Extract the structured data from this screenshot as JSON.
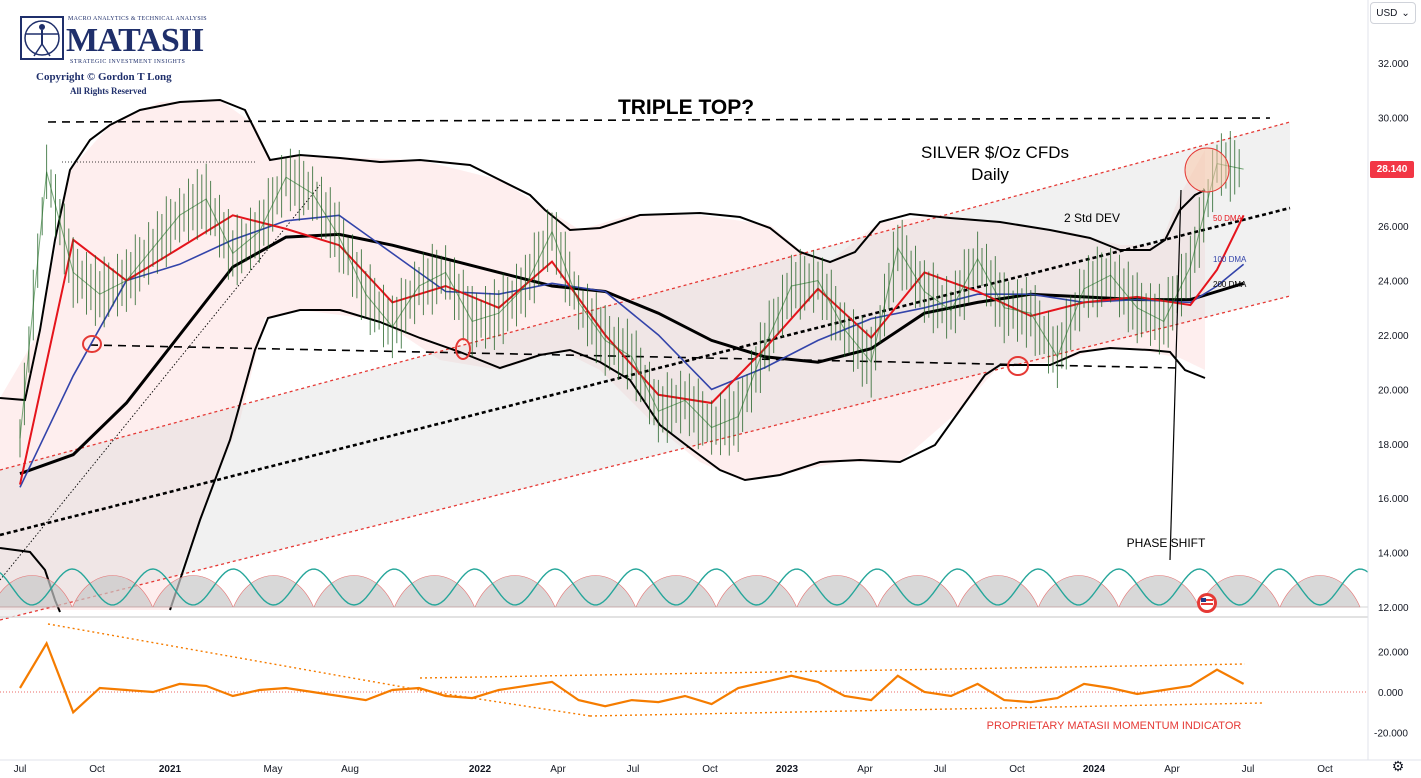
{
  "logo": {
    "small_line": "MACRO ANALYTICS & TECHNICAL ANALYSIS",
    "brand": "MATASII",
    "tagline": "STRATEGIC INVESTMENT INSIGHTS",
    "copyright": "Copyright © Gordon T Long",
    "rights": "All Rights Reserved"
  },
  "toolbar": {
    "currency": "USD",
    "settings_icon": "gear-icon"
  },
  "colors": {
    "price": "#2e7d32",
    "ma50": "#e5141c",
    "ma100": "#3344aa",
    "ma200": "#000000",
    "channel": "#e53935",
    "momentum": "#f57c00",
    "cycle_fill": "#c8c8c8",
    "cycle_line": "#26a69a",
    "price_tag": "#f23645"
  },
  "chart_data": [
    {
      "type": "line",
      "title": "SILVER $/Oz CFDs",
      "subtitle": "Daily",
      "heading": "TRIPLE TOP?",
      "currency": "USD",
      "last_price": "28.140",
      "y_ticks": [
        "32.000",
        "30.000",
        "28.000",
        "26.000",
        "24.000",
        "22.000",
        "20.000",
        "18.000",
        "16.000",
        "14.000",
        "12.000"
      ],
      "ylim": [
        12,
        33
      ],
      "x_ticks": [
        "Jul",
        "Oct",
        "2021",
        "May",
        "Aug",
        "2022",
        "Apr",
        "Jul",
        "Oct",
        "2023",
        "Apr",
        "Jul",
        "Oct",
        "2024",
        "Apr",
        "Jul",
        "Oct"
      ],
      "grid": false,
      "annotations": [
        "2 Std DEV",
        "50 DMA",
        "100 DMA",
        "200 DMA",
        "PHASE SHIFT"
      ],
      "series": [
        {
          "name": "50 DMA",
          "x": [
            "2020-07",
            "2020-09",
            "2020-11",
            "2021-01",
            "2021-03",
            "2021-05",
            "2021-07",
            "2021-09",
            "2021-11",
            "2022-01",
            "2022-03",
            "2022-05",
            "2022-07",
            "2022-09",
            "2022-11",
            "2023-01",
            "2023-03",
            "2023-05",
            "2023-07",
            "2023-09",
            "2023-11",
            "2024-01",
            "2024-03",
            "2024-04",
            "2024-05"
          ],
          "values": [
            16.5,
            25.5,
            24.0,
            25.2,
            26.4,
            25.9,
            25.3,
            23.2,
            23.8,
            23.0,
            24.7,
            22.0,
            19.8,
            19.5,
            21.5,
            23.7,
            21.9,
            24.3,
            23.6,
            22.7,
            23.2,
            23.4,
            23.1,
            24.4,
            26.4
          ]
        },
        {
          "name": "100 DMA",
          "x": [
            "2020-07",
            "2020-09",
            "2020-11",
            "2021-01",
            "2021-03",
            "2021-05",
            "2021-07",
            "2021-09",
            "2021-11",
            "2022-01",
            "2022-03",
            "2022-05",
            "2022-07",
            "2022-09",
            "2022-11",
            "2023-01",
            "2023-03",
            "2023-05",
            "2023-07",
            "2023-09",
            "2023-11",
            "2024-01",
            "2024-03",
            "2024-04",
            "2024-05"
          ],
          "values": [
            16.4,
            20.5,
            24.0,
            24.6,
            25.5,
            26.2,
            26.4,
            25.0,
            23.6,
            23.5,
            23.9,
            23.6,
            22.0,
            20.0,
            20.8,
            21.8,
            22.6,
            23.0,
            23.5,
            23.5,
            23.2,
            23.3,
            23.2,
            23.8,
            24.6
          ]
        },
        {
          "name": "200 DMA",
          "x": [
            "2020-07",
            "2020-09",
            "2020-11",
            "2021-01",
            "2021-03",
            "2021-05",
            "2021-07",
            "2021-09",
            "2021-11",
            "2022-01",
            "2022-03",
            "2022-05",
            "2022-07",
            "2022-09",
            "2022-11",
            "2023-01",
            "2023-03",
            "2023-05",
            "2023-07",
            "2023-09",
            "2023-11",
            "2024-01",
            "2024-03",
            "2024-04",
            "2024-05"
          ],
          "values": [
            16.9,
            17.6,
            19.5,
            22.0,
            24.5,
            25.6,
            25.7,
            25.3,
            24.8,
            24.3,
            23.8,
            23.6,
            22.8,
            21.8,
            21.2,
            21.0,
            21.5,
            22.8,
            23.2,
            23.5,
            23.4,
            23.3,
            23.3,
            23.6,
            23.9
          ]
        },
        {
          "name": "Price",
          "x": [
            "2020-07",
            "2020-08",
            "2020-09",
            "2020-10",
            "2020-11",
            "2020-12",
            "2021-01",
            "2021-02",
            "2021-03",
            "2021-04",
            "2021-05",
            "2021-06",
            "2021-07",
            "2021-08",
            "2021-09",
            "2021-10",
            "2021-11",
            "2021-12",
            "2022-01",
            "2022-02",
            "2022-03",
            "2022-04",
            "2022-05",
            "2022-06",
            "2022-07",
            "2022-08",
            "2022-09",
            "2022-10",
            "2022-11",
            "2022-12",
            "2023-01",
            "2023-02",
            "2023-03",
            "2023-04",
            "2023-05",
            "2023-06",
            "2023-07",
            "2023-08",
            "2023-09",
            "2023-10",
            "2023-11",
            "2023-12",
            "2024-01",
            "2024-02",
            "2024-03",
            "2024-04",
            "2024-05"
          ],
          "values": [
            18.2,
            28.0,
            24.3,
            23.5,
            24.0,
            25.2,
            26.4,
            27.0,
            25.0,
            25.8,
            27.8,
            27.2,
            25.6,
            23.5,
            22.3,
            23.8,
            24.3,
            22.5,
            22.8,
            23.8,
            25.8,
            23.2,
            21.8,
            21.2,
            19.2,
            19.6,
            18.6,
            19.0,
            21.6,
            23.8,
            24.0,
            22.2,
            21.0,
            25.2,
            23.6,
            22.9,
            24.8,
            23.0,
            22.8,
            21.2,
            23.7,
            24.2,
            23.0,
            22.5,
            24.5,
            28.3,
            28.1
          ]
        }
      ]
    },
    {
      "type": "line",
      "title": "PROPRIETARY MATASII MOMENTUM INDICATOR",
      "y_ticks": [
        "20.000",
        "0.000",
        "-20.000"
      ],
      "ylim": [
        -25,
        25
      ],
      "series": [
        {
          "name": "PROPRIETARY MATASII MOMENTUM INDICATOR",
          "x": [
            "2020-07",
            "2020-08",
            "2020-09",
            "2020-10",
            "2020-11",
            "2020-12",
            "2021-01",
            "2021-02",
            "2021-03",
            "2021-04",
            "2021-05",
            "2021-06",
            "2021-07",
            "2021-08",
            "2021-09",
            "2021-10",
            "2021-11",
            "2021-12",
            "2022-01",
            "2022-02",
            "2022-03",
            "2022-04",
            "2022-05",
            "2022-06",
            "2022-07",
            "2022-08",
            "2022-09",
            "2022-10",
            "2022-11",
            "2022-12",
            "2023-01",
            "2023-02",
            "2023-03",
            "2023-04",
            "2023-05",
            "2023-06",
            "2023-07",
            "2023-08",
            "2023-09",
            "2023-10",
            "2023-11",
            "2023-12",
            "2024-01",
            "2024-02",
            "2024-03",
            "2024-04",
            "2024-05"
          ],
          "values": [
            2.0,
            24.0,
            -10.0,
            2.0,
            1.0,
            0.0,
            4.0,
            3.0,
            -2.0,
            1.0,
            2.0,
            0.0,
            -2.0,
            -4.0,
            1.0,
            2.0,
            -2.0,
            -3.0,
            1.0,
            3.0,
            5.0,
            -4.0,
            -7.0,
            -4.0,
            -5.0,
            -2.0,
            -6.0,
            2.0,
            5.0,
            8.0,
            5.0,
            -2.0,
            -4.0,
            8.0,
            0.0,
            -2.0,
            4.0,
            -4.0,
            -5.0,
            -3.0,
            4.0,
            2.0,
            -1.0,
            1.0,
            3.0,
            11.0,
            4.0
          ]
        }
      ]
    }
  ]
}
